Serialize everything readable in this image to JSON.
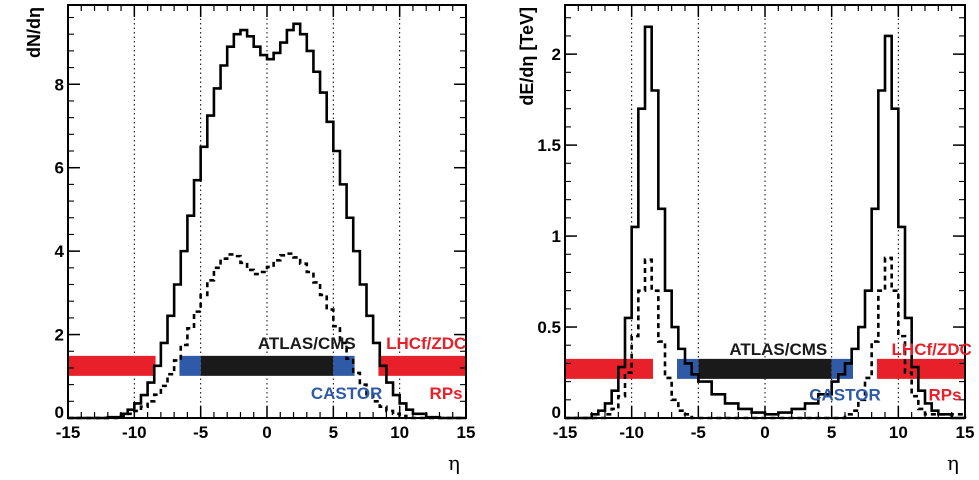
{
  "chart_data": [
    {
      "type": "line",
      "panel": "left",
      "ylabel": "dN/dη",
      "xlabel": "η",
      "xlim": [
        -15,
        15
      ],
      "ylim": [
        0,
        9.9
      ],
      "xticks": [
        -15,
        -10,
        -5,
        0,
        5,
        10,
        15
      ],
      "xtick_labels": [
        "-15",
        "-10",
        "-5",
        "0",
        "5",
        "10",
        "15"
      ],
      "yticks": [
        0,
        2,
        4,
        6,
        8
      ],
      "ytick_labels": [
        "0",
        "2",
        "4",
        "6",
        "8"
      ],
      "grid_x": [
        -10,
        -5,
        0,
        5,
        10
      ],
      "series": [
        {
          "style": "solid",
          "x": [
            -15,
            -14,
            -13,
            -12,
            -11,
            -10.5,
            -10,
            -9.5,
            -9,
            -8.5,
            -8,
            -7.5,
            -7,
            -6.5,
            -6,
            -5.5,
            -5,
            -4.5,
            -4,
            -3.5,
            -3,
            -2.5,
            -2,
            -1.5,
            -1,
            -0.5,
            0,
            0.5,
            1,
            1.5,
            2,
            2.5,
            3,
            3.5,
            4,
            4.5,
            5,
            5.5,
            6,
            6.5,
            7,
            7.5,
            8,
            8.5,
            9,
            9.5,
            10,
            10.5,
            11,
            12,
            13,
            14,
            15
          ],
          "y": [
            0,
            0,
            0,
            0.02,
            0.1,
            0.2,
            0.35,
            0.55,
            0.85,
            1.25,
            1.8,
            2.45,
            3.2,
            4.0,
            4.85,
            5.7,
            6.5,
            7.25,
            7.9,
            8.45,
            8.9,
            9.2,
            9.3,
            9.15,
            8.9,
            8.7,
            8.6,
            8.75,
            9.0,
            9.3,
            9.45,
            9.2,
            8.8,
            8.3,
            7.8,
            7.1,
            6.4,
            5.6,
            4.8,
            4.0,
            3.2,
            2.45,
            1.8,
            1.25,
            0.85,
            0.55,
            0.35,
            0.2,
            0.1,
            0.02,
            0,
            0,
            0
          ]
        },
        {
          "style": "dashed",
          "x": [
            -15,
            -14,
            -13,
            -12,
            -11,
            -10.5,
            -10,
            -9.5,
            -9,
            -8.5,
            -8,
            -7.5,
            -7,
            -6.5,
            -6,
            -5.5,
            -5,
            -4.5,
            -4,
            -3.5,
            -3,
            -2.5,
            -2,
            -1.5,
            -1,
            -0.5,
            0,
            0.5,
            1,
            1.5,
            2,
            2.5,
            3,
            3.5,
            4,
            4.5,
            5,
            5.5,
            6,
            6.5,
            7,
            7.5,
            8,
            8.5,
            9,
            9.5,
            10,
            10.5,
            11,
            12,
            13,
            14,
            15
          ],
          "y": [
            0,
            0,
            0,
            0,
            0.05,
            0.1,
            0.17,
            0.27,
            0.4,
            0.56,
            0.77,
            1.05,
            1.38,
            1.75,
            2.15,
            2.55,
            2.95,
            3.3,
            3.6,
            3.82,
            3.92,
            3.88,
            3.72,
            3.55,
            3.45,
            3.5,
            3.62,
            3.78,
            3.9,
            3.94,
            3.85,
            3.7,
            3.5,
            3.25,
            2.95,
            2.6,
            2.2,
            1.8,
            1.42,
            1.08,
            0.8,
            0.57,
            0.4,
            0.27,
            0.17,
            0.1,
            0.05,
            0,
            0,
            0,
            0,
            0,
            0
          ]
        }
      ],
      "detectors": [
        {
          "label": "ATLAS/CMS",
          "xmin": -5,
          "xmax": 5,
          "y": 1.25,
          "color": "#1a1a1a",
          "label_color": "#1a1a1a",
          "label_x": 3,
          "label_y": 1.8
        },
        {
          "label": "CASTOR",
          "xmin": -6.6,
          "xmax": -5,
          "y": 1.25,
          "color": "#2f5aa8",
          "label_color": "#2f5aa8",
          "label_x": 6,
          "label_y": 0.6
        },
        {
          "label": "",
          "xmin": 5,
          "xmax": 6.6,
          "y": 1.25,
          "color": "#2f5aa8"
        },
        {
          "label": "LHCf/ZDC",
          "xmin": 8.4,
          "xmax": 15,
          "y": 1.25,
          "color": "#e8202a",
          "label_color": "#e8202a",
          "label_x": 12,
          "label_y": 1.8
        },
        {
          "label": "RPs",
          "xmin": -15,
          "xmax": -8.4,
          "y": 1.25,
          "color": "#e8202a",
          "label_color": "#e8202a",
          "label_x": 13.5,
          "label_y": 0.6
        }
      ]
    },
    {
      "type": "line",
      "panel": "right",
      "ylabel": "dE/dη [TeV]",
      "xlabel": "η",
      "xlim": [
        -15,
        15
      ],
      "ylim": [
        0,
        2.27
      ],
      "xticks": [
        -15,
        -10,
        -5,
        0,
        5,
        10,
        15
      ],
      "xtick_labels": [
        "-15",
        "-10",
        "-5",
        "0",
        "5",
        "10",
        "15"
      ],
      "yticks": [
        0,
        0.5,
        1,
        1.5,
        2
      ],
      "ytick_labels": [
        "0",
        "0.5",
        "1",
        "1.5",
        "2"
      ],
      "grid_x": [
        -10,
        -5,
        0,
        5,
        10
      ],
      "series": [
        {
          "style": "solid",
          "x": [
            -15,
            -14,
            -13,
            -12.5,
            -12,
            -11.5,
            -11,
            -10.5,
            -10,
            -9.5,
            -9,
            -8.5,
            -8,
            -7.5,
            -7,
            -6.5,
            -6,
            -5.5,
            -5,
            -4,
            -3,
            -2,
            -1,
            0,
            1,
            2,
            3,
            4,
            5,
            5.5,
            6,
            6.5,
            7,
            7.5,
            8,
            8.5,
            9,
            9.5,
            10,
            10.5,
            11,
            11.5,
            12,
            12.5,
            13,
            14,
            15
          ],
          "y": [
            0,
            0,
            0.02,
            0.04,
            0.08,
            0.15,
            0.28,
            0.55,
            1.05,
            1.7,
            2.15,
            1.8,
            1.15,
            0.7,
            0.5,
            0.38,
            0.3,
            0.24,
            0.2,
            0.13,
            0.08,
            0.05,
            0.03,
            0.02,
            0.03,
            0.05,
            0.08,
            0.13,
            0.2,
            0.24,
            0.3,
            0.38,
            0.5,
            0.7,
            1.15,
            1.8,
            2.1,
            1.7,
            1.05,
            0.55,
            0.28,
            0.15,
            0.08,
            0.04,
            0.02,
            0,
            0
          ]
        },
        {
          "style": "dashed",
          "x": [
            -15,
            -12.5,
            -12,
            -11.5,
            -11,
            -10.5,
            -10,
            -9.5,
            -9,
            -8.5,
            -8,
            -7.5,
            -7,
            -6.5,
            -6,
            -5.5,
            -5,
            5,
            5.5,
            6,
            6.5,
            7,
            7.5,
            8,
            8.5,
            9,
            9.5,
            10,
            10.5,
            11,
            11.5,
            12,
            15
          ],
          "y": [
            0,
            0,
            0.02,
            0.05,
            0.12,
            0.25,
            0.45,
            0.7,
            0.87,
            0.7,
            0.42,
            0.22,
            0.1,
            0.04,
            0.02,
            0,
            0,
            0,
            0,
            0.02,
            0.04,
            0.1,
            0.22,
            0.42,
            0.7,
            0.88,
            0.7,
            0.45,
            0.25,
            0.12,
            0.05,
            0.02,
            0
          ]
        }
      ],
      "detectors": [
        {
          "label": "ATLAS/CMS",
          "xmin": -5,
          "xmax": 5,
          "y": 0.27,
          "color": "#1a1a1a",
          "label_color": "#1a1a1a",
          "label_x": 1,
          "label_y": 0.38
        },
        {
          "label": "CASTOR",
          "xmin": -6.6,
          "xmax": -5,
          "y": 0.27,
          "color": "#2f5aa8",
          "label_color": "#2f5aa8",
          "label_x": 6,
          "label_y": 0.13
        },
        {
          "label": "",
          "xmin": 5,
          "xmax": 6.6,
          "y": 0.27,
          "color": "#2f5aa8"
        },
        {
          "label": "LHCf/ZDC",
          "xmin": 8.4,
          "xmax": 15,
          "y": 0.27,
          "color": "#e8202a",
          "label_color": "#e8202a",
          "label_x": 12.5,
          "label_y": 0.38
        },
        {
          "label": "RPs",
          "xmin": -15,
          "xmax": -8.4,
          "y": 0.27,
          "color": "#e8202a",
          "label_color": "#e8202a",
          "label_x": 13.5,
          "label_y": 0.13
        }
      ]
    }
  ]
}
